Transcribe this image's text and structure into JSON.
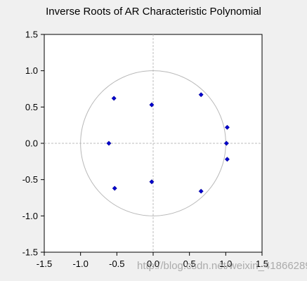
{
  "chart_data": {
    "type": "scatter",
    "title": "Inverse Roots of AR Characteristic Polynomial",
    "xlim": [
      -1.5,
      1.5
    ],
    "ylim": [
      -1.5,
      1.5
    ],
    "xticks": [
      -1.5,
      -1.0,
      -0.5,
      0.0,
      0.5,
      1.0,
      1.5
    ],
    "yticks": [
      -1.5,
      -1.0,
      -0.5,
      0.0,
      0.5,
      1.0,
      1.5
    ],
    "xtick_labels": [
      "-1.5",
      "-1.0",
      "-0.5",
      "0.0",
      "0.5",
      "1.0",
      "1.5"
    ],
    "ytick_labels": [
      "-1.5",
      "-1.0",
      "-0.5",
      "0.0",
      "0.5",
      "1.0",
      "1.5"
    ],
    "unit_circle": true,
    "reference_lines": "dashed lines at x = 0 and y = 0",
    "grid": false,
    "marker_color": "#0000cc",
    "series": [
      {
        "points": [
          {
            "x": -0.54,
            "y": 0.62
          },
          {
            "x": -0.02,
            "y": 0.53
          },
          {
            "x": 0.66,
            "y": 0.67
          },
          {
            "x": 1.02,
            "y": 0.22
          },
          {
            "x": -0.61,
            "y": 0.0
          },
          {
            "x": 1.01,
            "y": 0.0
          },
          {
            "x": 1.02,
            "y": -0.22
          },
          {
            "x": -0.53,
            "y": -0.62
          },
          {
            "x": -0.02,
            "y": -0.53
          },
          {
            "x": 0.66,
            "y": -0.66
          }
        ]
      }
    ]
  },
  "watermark": "http://blog.csdn.net/weixin_41866289"
}
